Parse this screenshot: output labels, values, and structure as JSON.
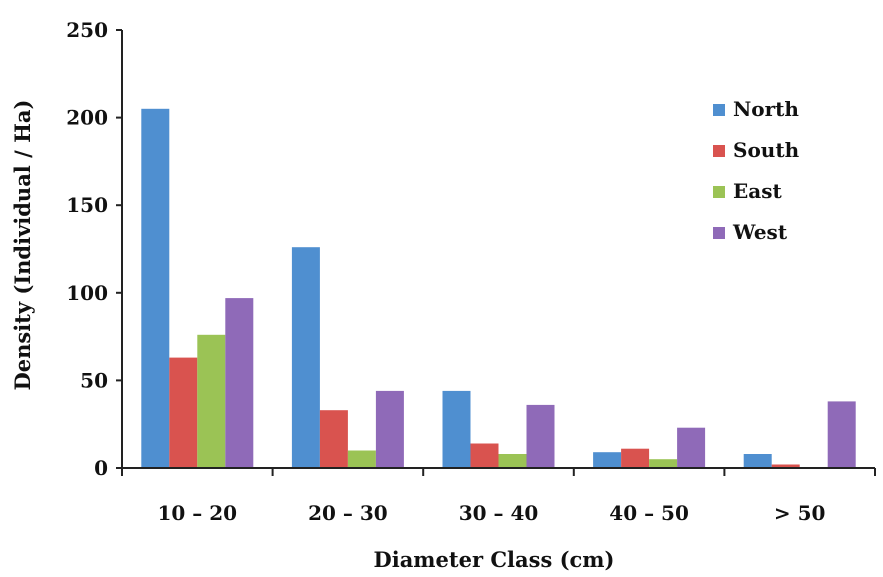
{
  "chart_data": {
    "type": "bar",
    "categories": [
      "10 – 20",
      "20 – 30",
      "30 – 40",
      "40 – 50",
      "> 50"
    ],
    "series": [
      {
        "name": "North",
        "color": "#4f8fd0",
        "values": [
          205,
          126,
          44,
          9,
          8
        ]
      },
      {
        "name": "South",
        "color": "#d9534f",
        "values": [
          63,
          33,
          14,
          11,
          2
        ]
      },
      {
        "name": "East",
        "color": "#9bc355",
        "values": [
          76,
          10,
          8,
          5,
          0
        ]
      },
      {
        "name": "West",
        "color": "#8f6ab8",
        "values": [
          97,
          44,
          36,
          23,
          38
        ]
      }
    ],
    "xlabel": "Diameter Class (cm)",
    "ylabel": "Density (Individual / Ha)",
    "ylim": [
      0,
      250
    ],
    "yticks": [
      "0",
      "50",
      "100",
      "150",
      "200",
      "250"
    ],
    "grid": false,
    "legend_position": "top-right"
  }
}
